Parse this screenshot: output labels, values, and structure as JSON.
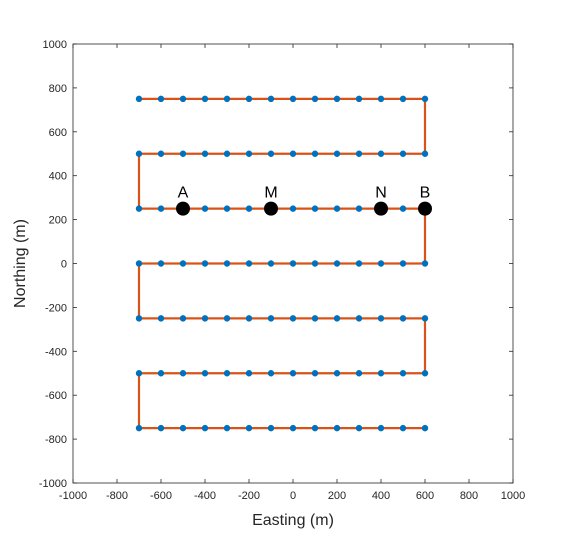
{
  "chart_data": {
    "type": "line",
    "xlabel": "Easting (m)",
    "ylabel": "Northing (m)",
    "xlim": [
      -1000,
      1000
    ],
    "ylim": [
      -1000,
      1000
    ],
    "xticks": [
      -1000,
      -800,
      -600,
      -400,
      -200,
      0,
      200,
      400,
      600,
      800,
      1000
    ],
    "yticks": [
      -1000,
      -800,
      -600,
      -400,
      -200,
      0,
      200,
      400,
      600,
      800,
      1000
    ],
    "xtick_labels": [
      "-1000",
      "-800",
      "-600",
      "-400",
      "-200",
      "0",
      "200",
      "400",
      "600",
      "800",
      "1000"
    ],
    "ytick_labels": [
      "-1000",
      "-800",
      "-600",
      "-400",
      "-200",
      "0",
      "200",
      "400",
      "600",
      "800",
      "1000"
    ],
    "grid": false,
    "path_color": "#d95319",
    "station_color": "#0072bd",
    "marker_color": "#000000",
    "rows_y": [
      750,
      500,
      250,
      0,
      -250,
      -500,
      -750
    ],
    "station_x": [
      -700,
      -600,
      -500,
      -400,
      -300,
      -200,
      -100,
      0,
      100,
      200,
      300,
      400,
      500,
      600
    ],
    "path": [
      [
        -700,
        750
      ],
      [
        600,
        750
      ],
      [
        600,
        500
      ],
      [
        -700,
        500
      ],
      [
        -700,
        250
      ],
      [
        600,
        250
      ],
      [
        600,
        0
      ],
      [
        -700,
        0
      ],
      [
        -700,
        -250
      ],
      [
        600,
        -250
      ],
      [
        600,
        -500
      ],
      [
        -700,
        -500
      ],
      [
        -700,
        -750
      ],
      [
        600,
        -750
      ]
    ],
    "labeled_points": [
      {
        "label": "A",
        "x": -500,
        "y": 250
      },
      {
        "label": "M",
        "x": -100,
        "y": 250
      },
      {
        "label": "N",
        "x": 400,
        "y": 250
      },
      {
        "label": "B",
        "x": 600,
        "y": 250
      }
    ]
  }
}
